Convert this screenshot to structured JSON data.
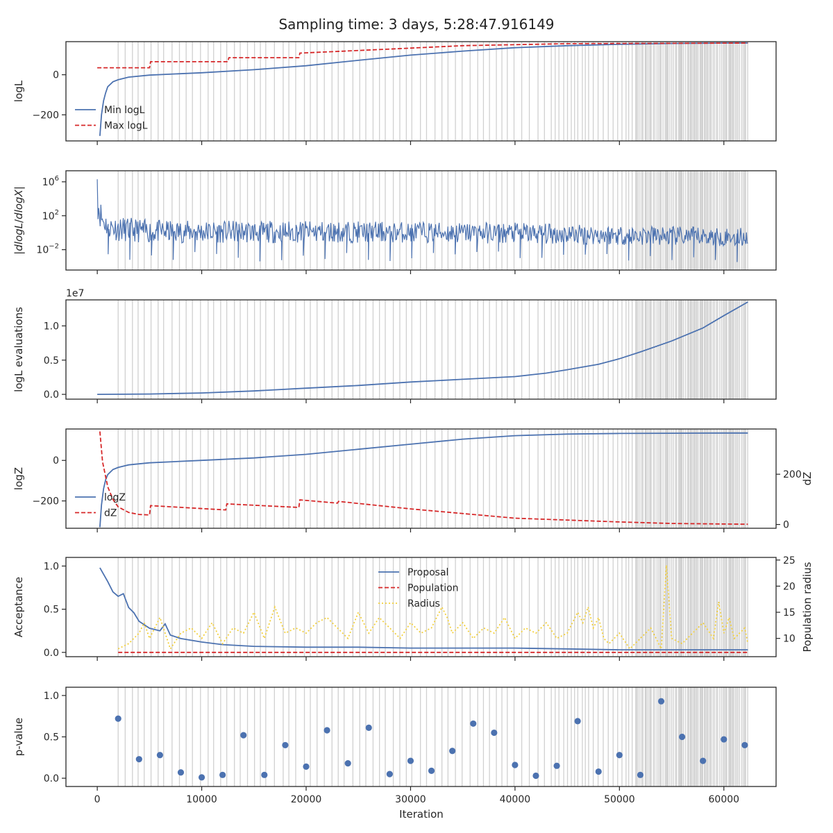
{
  "figure": {
    "title": "Sampling time: 3 days, 5:28:47.916149",
    "x_axis_label": "Iteration",
    "x_ticks": [
      "0",
      "10000",
      "20000",
      "30000",
      "40000",
      "50000",
      "60000"
    ],
    "x_tick_values": [
      0,
      10000,
      20000,
      30000,
      40000,
      50000,
      60000
    ],
    "x_range": [
      -3000,
      65000
    ],
    "colors": {
      "blue": "#4c72b0",
      "red": "#d62728",
      "yellow": "#f2cf3d",
      "vline": "#d0d0d0"
    }
  },
  "chart_data": [
    {
      "id": "logl",
      "type": "line",
      "ylabel": "logL",
      "ylim": [
        -330,
        165
      ],
      "y_ticks": [
        {
          "v": 0,
          "t": "0"
        },
        {
          "v": -200,
          "t": "−200"
        }
      ],
      "legend": {
        "placement": "lower-left",
        "entries": [
          "Min logL",
          "Max logL"
        ]
      },
      "series": [
        {
          "name": "Min logL",
          "color": "blue",
          "style": "solid",
          "x": [
            250,
            400,
            600,
            800,
            1000,
            1500,
            2000,
            3000,
            5000,
            10000,
            15000,
            20000,
            25000,
            30000,
            35000,
            40000,
            45000,
            50000,
            55000,
            60000,
            62300
          ],
          "y": [
            -305,
            -200,
            -130,
            -90,
            -60,
            -35,
            -25,
            -12,
            -2,
            10,
            25,
            45,
            72,
            98,
            118,
            135,
            145,
            152,
            156,
            158,
            158
          ]
        },
        {
          "name": "Max logL",
          "color": "red",
          "style": "dashed",
          "x": [
            0,
            5000,
            5100,
            12500,
            12600,
            19300,
            19400,
            28000,
            35000,
            45000,
            62300
          ],
          "y": [
            35,
            35,
            65,
            65,
            85,
            85,
            108,
            128,
            145,
            155,
            158
          ]
        }
      ]
    },
    {
      "id": "dlogl",
      "type": "line",
      "ylabel": "|dlogL/dlogX|",
      "yscale": "log",
      "ylim_log10": [
        -4.4,
        7.3
      ],
      "y_ticks": [
        {
          "v": 6,
          "t": "10",
          "e": "6"
        },
        {
          "v": 2,
          "t": "10",
          "e": "2"
        },
        {
          "v": -2,
          "t": "10",
          "e": "−2"
        }
      ],
      "series": [
        {
          "name": "",
          "color": "blue",
          "style": "solid",
          "x": [
            0,
            200,
            500,
            1000,
            2000,
            5000,
            10000,
            20000,
            30000,
            40000,
            50000,
            60000,
            62300
          ],
          "y_log10_upper": [
            6.3,
            4.5,
            3.0,
            2.2,
            1.9,
            1.5,
            1.4,
            1.4,
            1.3,
            1.2,
            0.9,
            0.6,
            0.6
          ],
          "y_log10_lower": [
            2.0,
            0.8,
            0.0,
            -0.6,
            -1.0,
            -1.2,
            -1.2,
            -1.2,
            -1.2,
            -1.3,
            -1.5,
            -1.6,
            -1.6
          ]
        }
      ]
    },
    {
      "id": "evals",
      "type": "line",
      "ylabel": "logL evaluations",
      "offset_label": "1e7",
      "ylim": [
        -0.07,
        1.38
      ],
      "y_ticks": [
        {
          "v": 0,
          "t": "0.0"
        },
        {
          "v": 0.5,
          "t": "0.5"
        },
        {
          "v": 1.0,
          "t": "1.0"
        }
      ],
      "series": [
        {
          "name": "",
          "color": "blue",
          "style": "solid",
          "x": [
            0,
            5000,
            10000,
            15000,
            20000,
            25000,
            30000,
            35000,
            40000,
            43000,
            45000,
            48000,
            50000,
            52000,
            55000,
            58000,
            60000,
            62300
          ],
          "y": [
            0,
            0.005,
            0.02,
            0.05,
            0.09,
            0.13,
            0.18,
            0.22,
            0.26,
            0.31,
            0.36,
            0.44,
            0.52,
            0.62,
            0.78,
            0.97,
            1.15,
            1.35
          ]
        }
      ]
    },
    {
      "id": "logz",
      "type": "line",
      "ylabel": "logZ",
      "ylabel_right": "dZ",
      "ylim": [
        -335,
        155
      ],
      "y_ticks": [
        {
          "v": 0,
          "t": "0"
        },
        {
          "v": -200,
          "t": "−200"
        }
      ],
      "ylim_right": [
        -15,
        380
      ],
      "y_ticks_right": [
        {
          "v": 0,
          "t": "0"
        },
        {
          "v": 200,
          "t": "200"
        }
      ],
      "legend": {
        "placement": "lower-left",
        "entries": [
          "logZ",
          "dZ"
        ]
      },
      "series": [
        {
          "name": "logZ",
          "color": "blue",
          "style": "solid",
          "axis": "left",
          "x": [
            250,
            400,
            600,
            800,
            1000,
            1500,
            2000,
            3000,
            5000,
            10000,
            15000,
            20000,
            25000,
            30000,
            35000,
            40000,
            45000,
            50000,
            55000,
            60000,
            62300
          ],
          "y": [
            -330,
            -220,
            -140,
            -95,
            -70,
            -45,
            -35,
            -22,
            -12,
            0,
            12,
            30,
            55,
            80,
            105,
            122,
            130,
            133,
            134,
            135,
            135
          ]
        },
        {
          "name": "dZ",
          "color": "red",
          "style": "dashed",
          "axis": "right",
          "x": [
            250,
            500,
            1000,
            1500,
            2000,
            3000,
            4000,
            5000,
            5100,
            12300,
            12400,
            19300,
            19400,
            23000,
            23100,
            30000,
            40000,
            50000,
            55000,
            62300
          ],
          "y": [
            370,
            250,
            150,
            100,
            70,
            48,
            40,
            38,
            75,
            58,
            82,
            68,
            98,
            85,
            92,
            62,
            25,
            10,
            4,
            1
          ]
        }
      ]
    },
    {
      "id": "acceptance",
      "type": "line",
      "ylabel": "Acceptance",
      "ylabel_right": "Population radius",
      "ylim": [
        -0.05,
        1.1
      ],
      "y_ticks": [
        {
          "v": 0,
          "t": "0.0"
        },
        {
          "v": 0.5,
          "t": "0.5"
        },
        {
          "v": 1.0,
          "t": "1.0"
        }
      ],
      "ylim_right": [
        6.5,
        25.5
      ],
      "y_ticks_right": [
        {
          "v": 10,
          "t": "10"
        },
        {
          "v": 15,
          "t": "15"
        },
        {
          "v": 20,
          "t": "20"
        },
        {
          "v": 25,
          "t": "25"
        }
      ],
      "legend": {
        "placement": "upper-center",
        "entries": [
          "Proposal",
          "Population",
          "Radius"
        ]
      },
      "series": [
        {
          "name": "Proposal",
          "color": "blue",
          "style": "solid",
          "axis": "left",
          "x": [
            250,
            1000,
            1500,
            2000,
            2500,
            3000,
            3500,
            4000,
            5000,
            6000,
            6500,
            7000,
            8000,
            10000,
            12000,
            15000,
            20000,
            25000,
            30000,
            35000,
            40000,
            45000,
            50000,
            55000,
            60000,
            62300
          ],
          "y": [
            0.98,
            0.82,
            0.7,
            0.65,
            0.68,
            0.52,
            0.46,
            0.36,
            0.28,
            0.25,
            0.33,
            0.2,
            0.16,
            0.12,
            0.09,
            0.07,
            0.06,
            0.06,
            0.05,
            0.05,
            0.05,
            0.04,
            0.03,
            0.03,
            0.03,
            0.03
          ]
        },
        {
          "name": "Population",
          "color": "red",
          "style": "dashed",
          "axis": "left",
          "x": [
            2000,
            62300
          ],
          "y": [
            0.0,
            0.0
          ]
        },
        {
          "name": "Radius",
          "color": "yellow",
          "style": "dotted",
          "axis": "right",
          "x": [
            2000,
            3000,
            4000,
            4500,
            5000,
            6000,
            7000,
            8000,
            9000,
            10000,
            11000,
            12000,
            13000,
            14000,
            15000,
            16000,
            17000,
            18000,
            19000,
            20000,
            21000,
            22000,
            23000,
            24000,
            25000,
            26000,
            27000,
            28000,
            29000,
            30000,
            31000,
            32000,
            33000,
            33500,
            34000,
            35000,
            36000,
            37000,
            38000,
            39000,
            40000,
            41000,
            42000,
            43000,
            44000,
            45000,
            46000,
            46500,
            47000,
            47500,
            48000,
            48500,
            49000,
            50000,
            51000,
            52000,
            53000,
            54000,
            54500,
            55000,
            56000,
            57000,
            58000,
            59000,
            59500,
            60000,
            60500,
            61000,
            62000,
            62300
          ],
          "y": [
            8,
            9,
            11,
            13,
            10,
            14,
            8,
            11,
            12,
            10,
            13,
            9,
            12,
            11,
            15,
            10,
            16,
            11,
            12,
            11,
            13,
            14,
            12,
            10,
            15,
            11,
            14,
            12,
            10,
            13,
            11,
            12,
            16,
            14,
            11,
            13,
            10,
            12,
            11,
            14,
            10,
            12,
            11,
            13,
            10,
            11,
            15,
            13,
            16,
            12,
            14,
            10,
            9,
            11,
            8,
            10,
            12,
            8,
            24,
            10,
            9,
            11,
            13,
            10,
            17,
            11,
            14,
            10,
            12,
            9
          ]
        }
      ]
    },
    {
      "id": "pvalue",
      "type": "scatter",
      "ylabel": "p-value",
      "ylim": [
        -0.1,
        1.1
      ],
      "y_ticks": [
        {
          "v": 0,
          "t": "0.0"
        },
        {
          "v": 0.5,
          "t": "0.5"
        },
        {
          "v": 1.0,
          "t": "1.0"
        }
      ],
      "series": [
        {
          "name": "",
          "color": "blue",
          "x": [
            2000,
            4000,
            6000,
            8000,
            10000,
            12000,
            14000,
            16000,
            18000,
            20000,
            22000,
            24000,
            26000,
            28000,
            30000,
            32000,
            34000,
            36000,
            38000,
            40000,
            42000,
            44000,
            46000,
            48000,
            50000,
            52000,
            54000,
            56000,
            58000,
            60000,
            62000
          ],
          "y": [
            0.72,
            0.23,
            0.28,
            0.07,
            0.01,
            0.04,
            0.52,
            0.04,
            0.4,
            0.14,
            0.58,
            0.18,
            0.61,
            0.05,
            0.21,
            0.09,
            0.33,
            0.66,
            0.55,
            0.16,
            0.03,
            0.15,
            0.69,
            0.08,
            0.28,
            0.04,
            0.93,
            0.5,
            0.21,
            0.47,
            0.4
          ]
        }
      ]
    }
  ]
}
